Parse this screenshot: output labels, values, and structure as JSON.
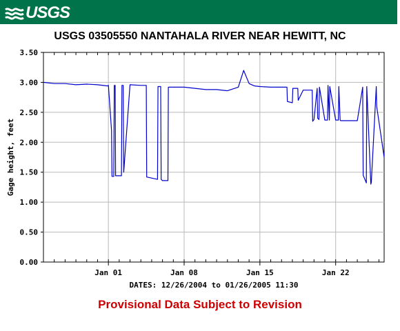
{
  "header": {
    "logo_text": "USGS",
    "logo_icon": "usgs-wave-icon",
    "banner_color": "#00734a"
  },
  "title": "USGS 03505550 NANTAHALA RIVER NEAR HEWITT, NC",
  "footnote": "Provisional Data Subject to Revision",
  "footnote_color": "#cc0000",
  "chart_data": {
    "type": "line",
    "title": "USGS 03505550 NANTAHALA RIVER NEAR HEWITT, NC",
    "xlabel": "DATES: 12/26/2004 to 01/26/2005 11:30",
    "ylabel": "Gage height, feet",
    "xlim": [
      "2004-12-26 00:00",
      "2005-01-26 11:30"
    ],
    "ylim": [
      0,
      3.5
    ],
    "x_tick_labels": [
      "Jan 01",
      "Jan 08",
      "Jan 15",
      "Jan 22"
    ],
    "y_tick_labels": [
      "0.00",
      "0.50",
      "1.00",
      "1.50",
      "2.00",
      "2.50",
      "3.00",
      "3.50"
    ],
    "grid": true,
    "series_color": "#0000cc",
    "series": [
      {
        "x": [
          "2004-12-26 00:00",
          "2004-12-27 00:00",
          "2004-12-28 00:00",
          "2004-12-29 00:00",
          "2004-12-30 00:00",
          "2004-12-31 00:00",
          "2004-12-31 22:00",
          "2005-01-01 00:00",
          "2005-01-01 07:00",
          "2005-01-01 08:00",
          "2005-01-01 12:00",
          "2005-01-01 13:00",
          "2005-01-01 15:00",
          "2005-01-01 16:00",
          "2005-01-02 05:00",
          "2005-01-02 06:00",
          "2005-01-02 09:00",
          "2005-01-02 10:00",
          "2005-01-03 00:00",
          "2005-01-04 00:00",
          "2005-01-04 12:00",
          "2005-01-04 13:00",
          "2005-01-05 13:00",
          "2005-01-05 14:00",
          "2005-01-05 20:00",
          "2005-01-05 21:00",
          "2005-01-06 00:00",
          "2005-01-06 12:00",
          "2005-01-06 13:00",
          "2005-01-06 18:00",
          "2005-01-06 19:00",
          "2005-01-08 00:00",
          "2005-01-09 00:00",
          "2005-01-10 00:00",
          "2005-01-11 00:00",
          "2005-01-12 00:00",
          "2005-01-13 00:00",
          "2005-01-13 12:00",
          "2005-01-14 00:00",
          "2005-01-14 06:00",
          "2005-01-14 12:00",
          "2005-01-15 00:00",
          "2005-01-16 00:00",
          "2005-01-17 00:00",
          "2005-01-17 12:00",
          "2005-01-17 13:00",
          "2005-01-18 00:00",
          "2005-01-18 01:00",
          "2005-01-18 12:00",
          "2005-01-18 13:00",
          "2005-01-19 00:00",
          "2005-01-19 20:00",
          "2005-01-19 21:00",
          "2005-01-20 00:00",
          "2005-01-20 07:00",
          "2005-01-20 08:00",
          "2005-01-20 11:00",
          "2005-01-20 12:00",
          "2005-01-21 00:00",
          "2005-01-21 06:00",
          "2005-01-21 07:00",
          "2005-01-21 10:00",
          "2005-01-21 11:00",
          "2005-01-22 00:00",
          "2005-01-22 06:00",
          "2005-01-22 07:00",
          "2005-01-22 10:00",
          "2005-01-22 11:00",
          "2005-01-23 00:00",
          "2005-01-24 00:00",
          "2005-01-24 12:00",
          "2005-01-24 13:00",
          "2005-01-24 20:00",
          "2005-01-24 21:00",
          "2005-01-25 06:00",
          "2005-01-25 07:00",
          "2005-01-25 18:00",
          "2005-01-25 19:00",
          "2005-01-26 11:30"
        ],
        "y": [
          3.0,
          2.98,
          2.98,
          2.96,
          2.97,
          2.96,
          2.94,
          2.95,
          2.2,
          1.43,
          1.43,
          2.95,
          2.95,
          1.44,
          1.44,
          2.95,
          2.95,
          1.5,
          2.96,
          2.95,
          2.95,
          1.42,
          1.38,
          2.93,
          2.93,
          1.38,
          1.36,
          1.36,
          2.92,
          2.92,
          2.92,
          2.92,
          2.9,
          2.88,
          2.88,
          2.86,
          2.92,
          3.2,
          2.98,
          2.96,
          2.94,
          2.93,
          2.92,
          2.92,
          2.92,
          2.68,
          2.66,
          2.9,
          2.9,
          2.7,
          2.87,
          2.87,
          2.35,
          2.38,
          2.9,
          2.4,
          2.38,
          2.92,
          2.37,
          2.37,
          2.95,
          2.37,
          2.93,
          2.37,
          2.37,
          2.93,
          2.37,
          2.36,
          2.36,
          2.36,
          2.92,
          1.45,
          1.32,
          2.93,
          1.3,
          1.33,
          2.93,
          2.6,
          1.75
        ]
      }
    ]
  }
}
